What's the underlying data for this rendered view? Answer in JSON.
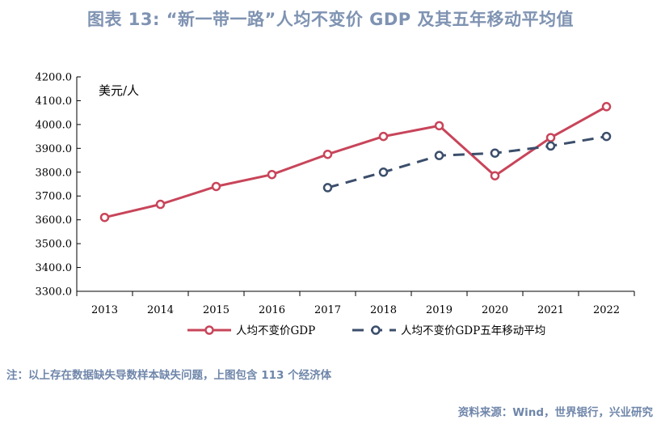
{
  "title": "图表 13: “新一带一路”人均不变价 GDP 及其五年移动平均值",
  "note": "注：以上存在数据缺失导数样本缺失问题，上图包含 113 个经济体",
  "source": "资料来源：Wind，世界银行，兴业研究",
  "colors": {
    "series1": "#c8455a",
    "series2": "#3b4e6b",
    "title": "#7f93b2",
    "footer": "#6f86aa"
  },
  "chart_data": {
    "type": "line",
    "ylabel": "美元/人",
    "ylim": [
      3300,
      4200
    ],
    "ytick_step": 100,
    "yticks": [
      "3300.0",
      "3400.0",
      "3500.0",
      "3600.0",
      "3700.0",
      "3800.0",
      "3900.0",
      "4000.0",
      "4100.0",
      "4200.0"
    ],
    "categories": [
      "2013",
      "2014",
      "2015",
      "2016",
      "2017",
      "2018",
      "2019",
      "2020",
      "2021",
      "2022"
    ],
    "grid": false,
    "legend_position": "bottom",
    "series": [
      {
        "name": "人均不变价GDP",
        "style": "solid",
        "values": [
          3610,
          3665,
          3740,
          3790,
          3875,
          3950,
          3995,
          3785,
          3945,
          4075
        ]
      },
      {
        "name": "人均不变价GDP五年移动平均",
        "style": "dashed",
        "values": [
          null,
          null,
          null,
          null,
          3735,
          3800,
          3870,
          3880,
          3910,
          3950
        ]
      }
    ]
  }
}
